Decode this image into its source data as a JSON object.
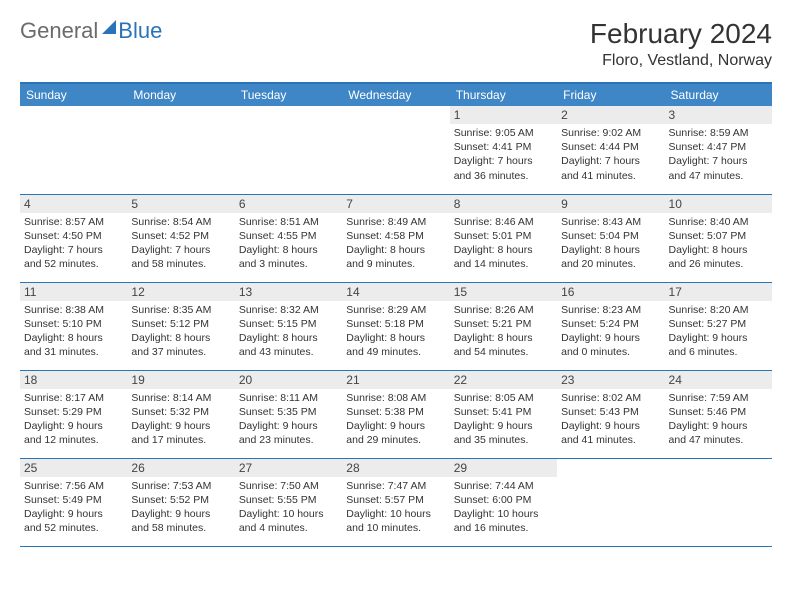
{
  "brand": {
    "text1": "General",
    "text2": "Blue"
  },
  "title": "February 2024",
  "location": "Floro, Vestland, Norway",
  "colors": {
    "header_bg": "#3f86c6",
    "border": "#2a73b8",
    "daynum_bg": "#ececec",
    "text": "#333333",
    "logo_gray": "#6b6b6b",
    "logo_blue": "#2a73b8"
  },
  "weekdays": [
    "Sunday",
    "Monday",
    "Tuesday",
    "Wednesday",
    "Thursday",
    "Friday",
    "Saturday"
  ],
  "blank_lead": 4,
  "days": [
    {
      "n": 1,
      "sunrise": "9:05 AM",
      "sunset": "4:41 PM",
      "day_h": 7,
      "day_m": 36
    },
    {
      "n": 2,
      "sunrise": "9:02 AM",
      "sunset": "4:44 PM",
      "day_h": 7,
      "day_m": 41
    },
    {
      "n": 3,
      "sunrise": "8:59 AM",
      "sunset": "4:47 PM",
      "day_h": 7,
      "day_m": 47
    },
    {
      "n": 4,
      "sunrise": "8:57 AM",
      "sunset": "4:50 PM",
      "day_h": 7,
      "day_m": 52
    },
    {
      "n": 5,
      "sunrise": "8:54 AM",
      "sunset": "4:52 PM",
      "day_h": 7,
      "day_m": 58
    },
    {
      "n": 6,
      "sunrise": "8:51 AM",
      "sunset": "4:55 PM",
      "day_h": 8,
      "day_m": 3
    },
    {
      "n": 7,
      "sunrise": "8:49 AM",
      "sunset": "4:58 PM",
      "day_h": 8,
      "day_m": 9
    },
    {
      "n": 8,
      "sunrise": "8:46 AM",
      "sunset": "5:01 PM",
      "day_h": 8,
      "day_m": 14
    },
    {
      "n": 9,
      "sunrise": "8:43 AM",
      "sunset": "5:04 PM",
      "day_h": 8,
      "day_m": 20
    },
    {
      "n": 10,
      "sunrise": "8:40 AM",
      "sunset": "5:07 PM",
      "day_h": 8,
      "day_m": 26
    },
    {
      "n": 11,
      "sunrise": "8:38 AM",
      "sunset": "5:10 PM",
      "day_h": 8,
      "day_m": 31
    },
    {
      "n": 12,
      "sunrise": "8:35 AM",
      "sunset": "5:12 PM",
      "day_h": 8,
      "day_m": 37
    },
    {
      "n": 13,
      "sunrise": "8:32 AM",
      "sunset": "5:15 PM",
      "day_h": 8,
      "day_m": 43
    },
    {
      "n": 14,
      "sunrise": "8:29 AM",
      "sunset": "5:18 PM",
      "day_h": 8,
      "day_m": 49
    },
    {
      "n": 15,
      "sunrise": "8:26 AM",
      "sunset": "5:21 PM",
      "day_h": 8,
      "day_m": 54
    },
    {
      "n": 16,
      "sunrise": "8:23 AM",
      "sunset": "5:24 PM",
      "day_h": 9,
      "day_m": 0
    },
    {
      "n": 17,
      "sunrise": "8:20 AM",
      "sunset": "5:27 PM",
      "day_h": 9,
      "day_m": 6
    },
    {
      "n": 18,
      "sunrise": "8:17 AM",
      "sunset": "5:29 PM",
      "day_h": 9,
      "day_m": 12
    },
    {
      "n": 19,
      "sunrise": "8:14 AM",
      "sunset": "5:32 PM",
      "day_h": 9,
      "day_m": 17
    },
    {
      "n": 20,
      "sunrise": "8:11 AM",
      "sunset": "5:35 PM",
      "day_h": 9,
      "day_m": 23
    },
    {
      "n": 21,
      "sunrise": "8:08 AM",
      "sunset": "5:38 PM",
      "day_h": 9,
      "day_m": 29
    },
    {
      "n": 22,
      "sunrise": "8:05 AM",
      "sunset": "5:41 PM",
      "day_h": 9,
      "day_m": 35
    },
    {
      "n": 23,
      "sunrise": "8:02 AM",
      "sunset": "5:43 PM",
      "day_h": 9,
      "day_m": 41
    },
    {
      "n": 24,
      "sunrise": "7:59 AM",
      "sunset": "5:46 PM",
      "day_h": 9,
      "day_m": 47
    },
    {
      "n": 25,
      "sunrise": "7:56 AM",
      "sunset": "5:49 PM",
      "day_h": 9,
      "day_m": 52
    },
    {
      "n": 26,
      "sunrise": "7:53 AM",
      "sunset": "5:52 PM",
      "day_h": 9,
      "day_m": 58
    },
    {
      "n": 27,
      "sunrise": "7:50 AM",
      "sunset": "5:55 PM",
      "day_h": 10,
      "day_m": 4
    },
    {
      "n": 28,
      "sunrise": "7:47 AM",
      "sunset": "5:57 PM",
      "day_h": 10,
      "day_m": 10
    },
    {
      "n": 29,
      "sunrise": "7:44 AM",
      "sunset": "6:00 PM",
      "day_h": 10,
      "day_m": 16
    }
  ],
  "labels": {
    "sunrise": "Sunrise:",
    "sunset": "Sunset:",
    "daylight": "Daylight:",
    "hours": "hours",
    "and": "and",
    "minutes": "minutes."
  }
}
